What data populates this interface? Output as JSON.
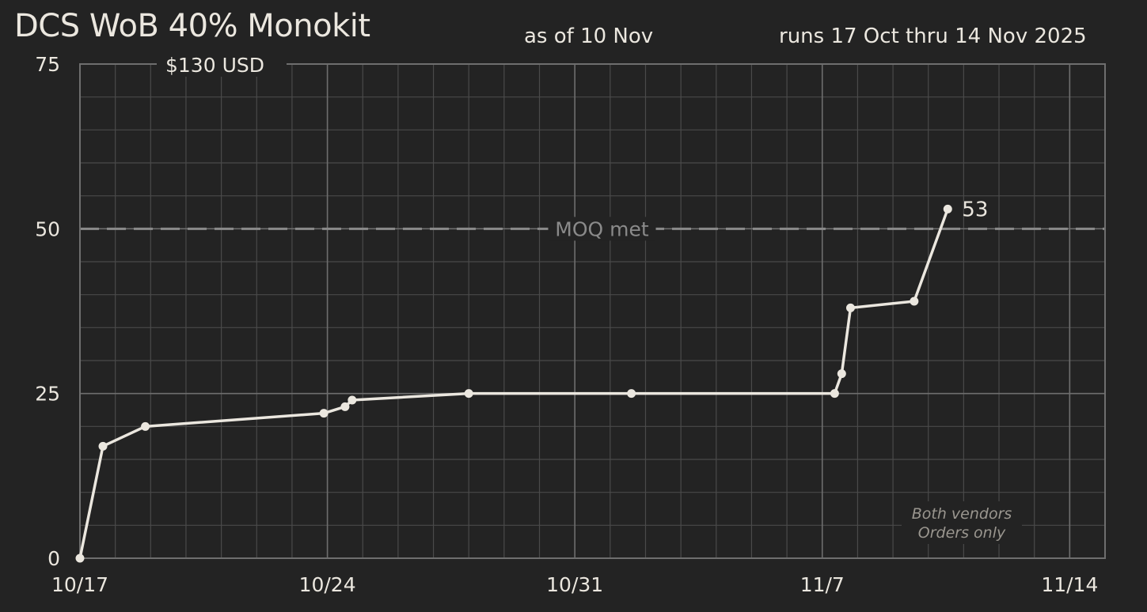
{
  "header": {
    "title": "DCS WoB 40% Monokit",
    "as_of": "as of 10 Nov",
    "runs": "runs 17 Oct thru 14 Nov 2025",
    "price": "$130 USD"
  },
  "colors": {
    "background": "#232323",
    "line": "#ebe7df",
    "grid_major": "#6e6e6e",
    "grid_minor": "#4a4a4a",
    "threshold": "#8a8a8a"
  },
  "chart_data": {
    "type": "line",
    "title": "DCS WoB 40% Monokit",
    "xlabel": "",
    "ylabel": "",
    "x_axis": "days since 10/17",
    "xlim": [
      0,
      29
    ],
    "ylim": [
      0,
      75
    ],
    "x_ticks": [
      {
        "x": 0,
        "label": "10/17"
      },
      {
        "x": 7,
        "label": "10/24"
      },
      {
        "x": 14,
        "label": "10/31"
      },
      {
        "x": 21,
        "label": "11/7"
      },
      {
        "x": 28,
        "label": "11/14"
      }
    ],
    "y_ticks": [
      0,
      25,
      50,
      75
    ],
    "grid": true,
    "x_minor_step": 1,
    "y_minor_step": 5,
    "series": [
      {
        "name": "Orders",
        "points": [
          {
            "x": 0,
            "y": 0
          },
          {
            "x": 0.65,
            "y": 17
          },
          {
            "x": 1.85,
            "y": 20
          },
          {
            "x": 6.9,
            "y": 22
          },
          {
            "x": 7.5,
            "y": 23
          },
          {
            "x": 7.7,
            "y": 24
          },
          {
            "x": 11,
            "y": 25
          },
          {
            "x": 15.6,
            "y": 25
          },
          {
            "x": 21.35,
            "y": 25
          },
          {
            "x": 21.55,
            "y": 28
          },
          {
            "x": 21.8,
            "y": 38
          },
          {
            "x": 23.6,
            "y": 39
          },
          {
            "x": 24.55,
            "y": 53
          }
        ]
      }
    ],
    "end_label": "53",
    "threshold": {
      "y": 50,
      "label": "MOQ met"
    },
    "annotation": [
      "Both vendors",
      "Orders only"
    ]
  }
}
